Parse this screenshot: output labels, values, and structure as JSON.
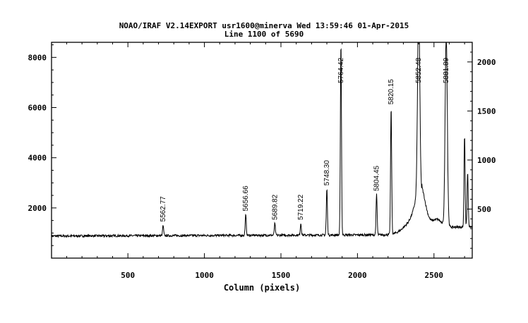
{
  "chart_data": {
    "type": "line",
    "title": "NOAO/IRAF V2.14EXPORT usr1600@minerva Wed 13:59:46 01-Apr-2015",
    "subtitle": "Line 1100 of 5690",
    "xlabel": "Column (pixels)",
    "ylabel": "",
    "xlim": [
      1,
      2750
    ],
    "ylim": [
      0,
      8600
    ],
    "y2lim": [
      0,
      2200
    ],
    "x_ticks": [
      500,
      1000,
      1500,
      2000,
      2500
    ],
    "y_ticks": [
      2000,
      4000,
      6000,
      8000
    ],
    "y2_ticks": [
      500,
      1000,
      1500,
      2000
    ],
    "grid": false,
    "legend": "none",
    "line_color": "#000000",
    "baseline": 880,
    "series": [
      {
        "values_note": "",
        "peaks": [
          {
            "x": 730,
            "y": 1280
          },
          {
            "x": 1270,
            "y": 1700
          },
          {
            "x": 1460,
            "y": 1350
          },
          {
            "x": 1630,
            "y": 1350
          },
          {
            "x": 1800,
            "y": 2720
          },
          {
            "x": 1892,
            "y": 8600
          },
          {
            "x": 2125,
            "y": 2500
          },
          {
            "x": 2220,
            "y": 5950
          },
          {
            "x": 2400,
            "y": 8600
          },
          {
            "x": 2580,
            "y": 8600
          },
          {
            "x": 2700,
            "y": 4550
          },
          {
            "x": 2720,
            "y": 3050
          }
        ]
      }
    ],
    "annotations": [
      {
        "label": "5562.77",
        "x": 730
      },
      {
        "label": "5656.66",
        "x": 1270
      },
      {
        "label": "5689.82",
        "x": 1460
      },
      {
        "label": "5719.22",
        "x": 1630
      },
      {
        "label": "5748.30",
        "x": 1800
      },
      {
        "label": "5764.42",
        "x": 1892
      },
      {
        "label": "5804.45",
        "x": 2125
      },
      {
        "label": "5820.15",
        "x": 2220
      },
      {
        "label": "5852.48",
        "x": 2400
      },
      {
        "label": "5881.89",
        "x": 2580
      }
    ]
  }
}
